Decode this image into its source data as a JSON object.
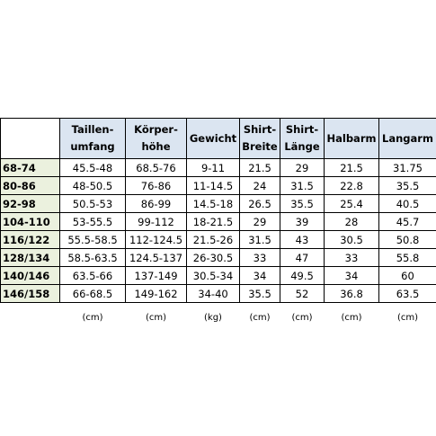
{
  "table": {
    "header": [
      [
        "Taillen-",
        "umfang"
      ],
      [
        "Körper-",
        "höhe"
      ],
      [
        "Gewicht"
      ],
      [
        "Shirt-",
        "Breite"
      ],
      [
        "Shirt-",
        "Länge"
      ],
      [
        "Halbarm"
      ],
      [
        "Langarm"
      ]
    ],
    "rows": [
      [
        "68-74",
        "45.5-48",
        "68.5-76",
        "9-11",
        "21.5",
        "29",
        "21.5",
        "31.75"
      ],
      [
        "80-86",
        "48-50.5",
        "76-86",
        "11-14.5",
        "24",
        "31.5",
        "22.8",
        "35.5"
      ],
      [
        "92-98",
        "50.5-53",
        "86-99",
        "14.5-18",
        "26.5",
        "35.5",
        "25.4",
        "40.5"
      ],
      [
        "104-110",
        "53-55.5",
        "99-112",
        "18-21.5",
        "29",
        "39",
        "28",
        "45.7"
      ],
      [
        "116/122",
        "55.5-58.5",
        "112-124.5",
        "21.5-26",
        "31.5",
        "43",
        "30.5",
        "50.8"
      ],
      [
        "128/134",
        "58.5-63.5",
        "124.5-137",
        "26-30.5",
        "33",
        "47",
        "33",
        "55.8"
      ],
      [
        "140/146",
        "63.5-66",
        "137-149",
        "30.5-34",
        "34",
        "49.5",
        "34",
        "60"
      ],
      [
        "146/158",
        "66-68.5",
        "149-162",
        "34-40",
        "35.5",
        "52",
        "36.8",
        "63.5"
      ]
    ],
    "units": [
      "(cm)",
      "(cm)",
      "(kg)",
      "(cm)",
      "(cm)",
      "(cm)",
      "(cm)"
    ]
  }
}
